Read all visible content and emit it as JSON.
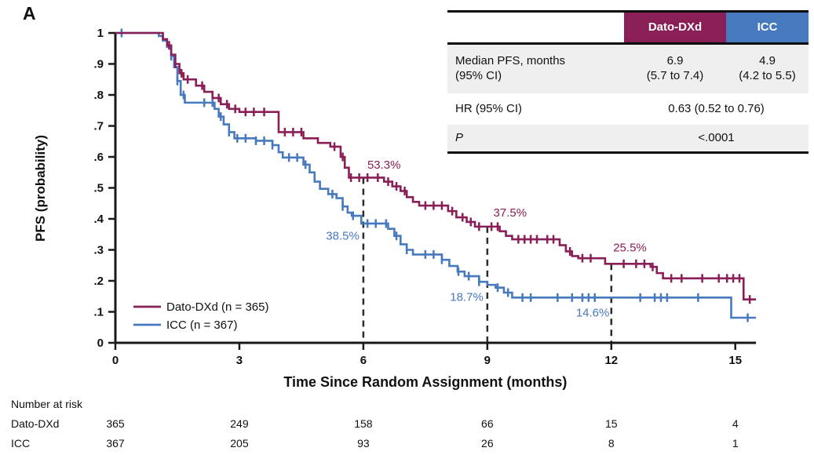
{
  "panel_label": "A",
  "colors": {
    "dato": "#8A1E56",
    "icc": "#4679BE",
    "row_gray": "#EFEFEF",
    "axis": "#1A1A1A",
    "dash": "#2B2B2B",
    "text": "#111111"
  },
  "chart_data": {
    "type": "line",
    "subtype": "kaplan_meier_step",
    "title": "",
    "xlabel": "Time Since Random Assignment (months)",
    "ylabel": "PFS (probability)",
    "xlim": [
      0,
      15.5
    ],
    "ylim": [
      0,
      1
    ],
    "grid": false,
    "legend_position": "inside-lower-left",
    "xticks": {
      "values": [
        0,
        3,
        6,
        9,
        12,
        15
      ],
      "labels": [
        "0",
        "3",
        "6",
        "9",
        "12",
        "15"
      ]
    },
    "yticks": {
      "values": [
        0,
        0.1,
        0.2,
        0.3,
        0.4,
        0.5,
        0.6,
        0.7,
        0.8,
        0.9,
        1
      ],
      "labels": [
        "0",
        ".1",
        ".2",
        ".3",
        ".4",
        ".5",
        ".6",
        ".7",
        ".8",
        ".9",
        "1"
      ]
    },
    "series": [
      {
        "id": "icc",
        "name": "ICC (n = 367)",
        "color_key": "icc",
        "end": 15.5,
        "steps": [
          [
            0,
            1.0
          ],
          [
            1.05,
            0.99
          ],
          [
            1.15,
            0.975
          ],
          [
            1.25,
            0.955
          ],
          [
            1.35,
            0.925
          ],
          [
            1.42,
            0.89
          ],
          [
            1.5,
            0.845
          ],
          [
            1.58,
            0.8
          ],
          [
            1.68,
            0.775
          ],
          [
            2.4,
            0.755
          ],
          [
            2.5,
            0.73
          ],
          [
            2.62,
            0.705
          ],
          [
            2.75,
            0.68
          ],
          [
            2.88,
            0.66
          ],
          [
            3.4,
            0.652
          ],
          [
            3.8,
            0.638
          ],
          [
            3.95,
            0.615
          ],
          [
            4.05,
            0.598
          ],
          [
            4.55,
            0.575
          ],
          [
            4.7,
            0.55
          ],
          [
            4.82,
            0.52
          ],
          [
            4.95,
            0.497
          ],
          [
            5.15,
            0.48
          ],
          [
            5.35,
            0.467
          ],
          [
            5.5,
            0.44
          ],
          [
            5.62,
            0.42
          ],
          [
            5.72,
            0.41
          ],
          [
            5.95,
            0.385
          ],
          [
            6.6,
            0.368
          ],
          [
            6.75,
            0.345
          ],
          [
            6.9,
            0.318
          ],
          [
            7.05,
            0.3
          ],
          [
            7.2,
            0.285
          ],
          [
            7.9,
            0.268
          ],
          [
            8.08,
            0.248
          ],
          [
            8.28,
            0.23
          ],
          [
            8.45,
            0.215
          ],
          [
            8.8,
            0.197
          ],
          [
            9.0,
            0.187
          ],
          [
            9.2,
            0.178
          ],
          [
            9.4,
            0.162
          ],
          [
            9.6,
            0.146
          ],
          [
            14.9,
            0.081
          ]
        ],
        "censor_times": [
          0.15,
          1.35,
          1.5,
          1.65,
          2.15,
          2.35,
          2.55,
          2.75,
          2.95,
          3.15,
          3.4,
          3.6,
          3.8,
          4.2,
          4.4,
          4.6,
          5.25,
          5.5,
          5.75,
          6.1,
          6.3,
          6.55,
          6.8,
          7.05,
          7.5,
          7.7,
          7.9,
          8.3,
          8.55,
          8.8,
          9.25,
          9.5,
          9.85,
          10.05,
          10.7,
          11.05,
          11.3,
          11.45,
          11.6,
          12.7,
          13.05,
          13.2,
          13.35,
          14.1,
          15.3
        ]
      },
      {
        "id": "dato",
        "name": "Dato-DXd (n = 365)",
        "color_key": "dato",
        "end": 15.5,
        "steps": [
          [
            0,
            1.0
          ],
          [
            1.15,
            0.98
          ],
          [
            1.25,
            0.96
          ],
          [
            1.35,
            0.93
          ],
          [
            1.45,
            0.9
          ],
          [
            1.55,
            0.87
          ],
          [
            1.65,
            0.85
          ],
          [
            1.95,
            0.83
          ],
          [
            2.15,
            0.81
          ],
          [
            2.35,
            0.79
          ],
          [
            2.55,
            0.77
          ],
          [
            2.75,
            0.755
          ],
          [
            3.0,
            0.745
          ],
          [
            3.95,
            0.68
          ],
          [
            4.55,
            0.66
          ],
          [
            4.9,
            0.645
          ],
          [
            5.2,
            0.633
          ],
          [
            5.45,
            0.6
          ],
          [
            5.55,
            0.565
          ],
          [
            5.65,
            0.533
          ],
          [
            6.5,
            0.52
          ],
          [
            6.7,
            0.505
          ],
          [
            6.9,
            0.49
          ],
          [
            7.05,
            0.47
          ],
          [
            7.2,
            0.455
          ],
          [
            7.35,
            0.443
          ],
          [
            8.05,
            0.425
          ],
          [
            8.25,
            0.405
          ],
          [
            8.5,
            0.39
          ],
          [
            8.7,
            0.375
          ],
          [
            9.3,
            0.36
          ],
          [
            9.45,
            0.345
          ],
          [
            9.6,
            0.334
          ],
          [
            10.75,
            0.315
          ],
          [
            10.9,
            0.295
          ],
          [
            11.05,
            0.28
          ],
          [
            11.2,
            0.273
          ],
          [
            11.85,
            0.255
          ],
          [
            12.95,
            0.245
          ],
          [
            13.1,
            0.225
          ],
          [
            13.25,
            0.208
          ],
          [
            15.2,
            0.14
          ]
        ],
        "censor_times": [
          1.3,
          1.45,
          1.6,
          1.75,
          2.1,
          2.5,
          2.7,
          2.9,
          3.15,
          3.35,
          3.6,
          4.1,
          4.3,
          4.5,
          5.3,
          5.5,
          5.7,
          5.9,
          6.1,
          6.35,
          6.6,
          6.8,
          7.0,
          7.5,
          7.7,
          7.9,
          8.15,
          8.4,
          8.6,
          8.8,
          9.1,
          9.25,
          9.75,
          9.9,
          10.05,
          10.2,
          10.45,
          10.6,
          11.0,
          11.3,
          11.5,
          12.3,
          12.6,
          12.8,
          13.0,
          13.45,
          13.7,
          14.2,
          14.6,
          14.8,
          14.95,
          15.1,
          15.35
        ]
      }
    ],
    "dashed_reference_lines": [
      {
        "x": 6,
        "y_top": 0.533
      },
      {
        "x": 9,
        "y_top": 0.375
      },
      {
        "x": 12,
        "y_top": 0.255
      }
    ],
    "annotations": [
      {
        "text": "53.3%",
        "x": 6.5,
        "y": 0.575,
        "color_key": "dato"
      },
      {
        "text": "38.5%",
        "x": 5.5,
        "y": 0.345,
        "color_key": "icc"
      },
      {
        "text": "37.5%",
        "x": 9.55,
        "y": 0.42,
        "color_key": "dato"
      },
      {
        "text": "18.7%",
        "x": 8.5,
        "y": 0.148,
        "color_key": "icc"
      },
      {
        "text": "25.5%",
        "x": 12.45,
        "y": 0.308,
        "color_key": "dato"
      },
      {
        "text": "14.6%",
        "x": 11.55,
        "y": 0.098,
        "color_key": "icc"
      }
    ]
  },
  "stats_table": {
    "col1_header": "Dato-DXd",
    "col2_header": "ICC",
    "rows": [
      {
        "label_line1": "Median PFS, months",
        "label_line2": "(95% CI)",
        "dato_line1": "6.9",
        "dato_line2": "(5.7 to 7.4)",
        "icc_line1": "4.9",
        "icc_line2": "(4.2 to 5.5)"
      },
      {
        "label": "HR (95% CI)",
        "value": "0.63 (0.52 to 0.76)"
      },
      {
        "label": "P",
        "value": "<.0001"
      }
    ]
  },
  "risk_table": {
    "title": "Number at risk",
    "rows": [
      {
        "label": "Dato-DXd",
        "values": [
          365,
          249,
          158,
          66,
          15,
          4
        ]
      },
      {
        "label": "ICC",
        "values": [
          367,
          205,
          93,
          26,
          8,
          1
        ]
      }
    ]
  }
}
